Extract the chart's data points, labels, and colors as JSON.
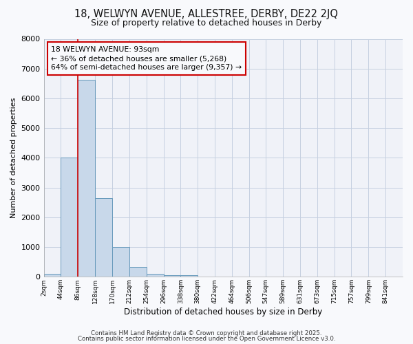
{
  "title_line1": "18, WELWYN AVENUE, ALLESTREE, DERBY, DE22 2JQ",
  "title_line2": "Size of property relative to detached houses in Derby",
  "xlabel": "Distribution of detached houses by size in Derby",
  "ylabel": "Number of detached properties",
  "bin_edges": [
    2,
    44,
    86,
    128,
    170,
    212,
    254,
    296,
    338,
    380,
    422,
    464,
    506,
    547,
    589,
    631,
    673,
    715,
    757,
    799,
    841,
    883
  ],
  "bar_heights": [
    100,
    4020,
    6630,
    2650,
    1000,
    320,
    100,
    60,
    60,
    0,
    0,
    0,
    0,
    0,
    0,
    0,
    0,
    0,
    0,
    0,
    0
  ],
  "bar_color": "#c8d8ea",
  "bar_edgecolor": "#6699bb",
  "grid_color": "#c5cfe0",
  "bg_color": "#f0f2f8",
  "fig_bg_color": "#f8f9fc",
  "vline_x": 86,
  "vline_color": "#cc0000",
  "annotation_text": "18 WELWYN AVENUE: 93sqm\n← 36% of detached houses are smaller (5,268)\n64% of semi-detached houses are larger (9,357) →",
  "annotation_box_color": "#cc0000",
  "annotation_text_color": "#000000",
  "ylim": [
    0,
    8000
  ],
  "yticks": [
    0,
    1000,
    2000,
    3000,
    4000,
    5000,
    6000,
    7000,
    8000
  ],
  "xtick_labels": [
    "2sqm",
    "44sqm",
    "86sqm",
    "128sqm",
    "170sqm",
    "212sqm",
    "254sqm",
    "296sqm",
    "338sqm",
    "380sqm",
    "422sqm",
    "464sqm",
    "506sqm",
    "547sqm",
    "589sqm",
    "631sqm",
    "673sqm",
    "715sqm",
    "757sqm",
    "799sqm",
    "841sqm"
  ],
  "footnote1": "Contains HM Land Registry data © Crown copyright and database right 2025.",
  "footnote2": "Contains public sector information licensed under the Open Government Licence v3.0."
}
